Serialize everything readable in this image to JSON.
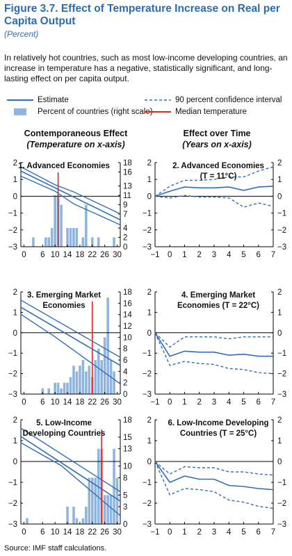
{
  "figure": {
    "title": "Figure 3.7.  Effect of Temperature Increase on Real per Capita Output",
    "subtitle": "(Percent)",
    "description": "In relatively hot countries, such as most low-income developing countries, an increase in temperature has a negative, statistically significant, and long-lasting effect on per capita output.",
    "source": "Source: IMF staff calculations."
  },
  "legend": {
    "estimate": "Estimate",
    "ci": "90 percent confidence interval",
    "bars": "Percent of countries (right scale)",
    "median": "Median temperature"
  },
  "columns": {
    "left_title": "Contemporaneous Effect",
    "left_sub": "(Temperature on x-axis)",
    "right_title": "Effect over Time",
    "right_sub": "(Years on x-axis)"
  },
  "colors": {
    "blue": "#2f6db5",
    "bar": "#8fb4de",
    "median": "#d62728"
  },
  "chart_data": [
    {
      "type": "bar+line",
      "title": "1. Advanced Economies",
      "x_ticks": [
        0,
        6,
        10,
        14,
        18,
        22,
        26,
        30
      ],
      "xlim": [
        -1,
        31
      ],
      "ylim": [
        -3,
        2
      ],
      "y_ticks": [
        -3,
        -2,
        -1,
        0,
        1,
        2
      ],
      "y2lim": [
        0,
        18
      ],
      "y2_ticks": [
        0,
        2,
        4,
        7,
        9,
        11,
        13,
        16,
        18
      ],
      "bars": [
        [
          3,
          2
        ],
        [
          7,
          2
        ],
        [
          8,
          2
        ],
        [
          9,
          4
        ],
        [
          10,
          11
        ],
        [
          11,
          11
        ],
        [
          12,
          9
        ],
        [
          14,
          4
        ],
        [
          15,
          4
        ],
        [
          16,
          4
        ],
        [
          17,
          4
        ],
        [
          19,
          2
        ],
        [
          20,
          9
        ],
        [
          22,
          2
        ],
        [
          24,
          2
        ],
        [
          29,
          2
        ]
      ],
      "estimate": [
        [
          -1,
          1.5
        ],
        [
          31,
          -1.4
        ]
      ],
      "ci_upper": [
        [
          -1,
          1.75
        ],
        [
          10,
          0.68
        ],
        [
          16,
          0.26
        ],
        [
          31,
          -1.05
        ]
      ],
      "ci_lower": [
        [
          -1,
          1.2
        ],
        [
          10,
          0.3
        ],
        [
          16,
          -0.45
        ],
        [
          31,
          -1.7
        ]
      ],
      "median": 11
    },
    {
      "type": "line",
      "title": "2. Advanced Economies",
      "title2": "(T = 11°C)",
      "x_ticks": [
        -1,
        0,
        1,
        2,
        3,
        4,
        5,
        6,
        7
      ],
      "xlim": [
        -1,
        7
      ],
      "ylim": [
        -3,
        2
      ],
      "y_ticks": [
        -3,
        -2,
        -1,
        0,
        1,
        2
      ],
      "estimate": [
        [
          -1,
          0
        ],
        [
          0,
          0.3
        ],
        [
          1,
          0.55
        ],
        [
          2,
          0.5
        ],
        [
          3,
          0.5
        ],
        [
          4,
          0.55
        ],
        [
          5,
          0.35
        ],
        [
          6,
          0.55
        ],
        [
          7,
          0.6
        ]
      ],
      "ci_upper": [
        [
          -1,
          0
        ],
        [
          0,
          0.6
        ],
        [
          1,
          0.95
        ],
        [
          2,
          0.95
        ],
        [
          3,
          1.0
        ],
        [
          4,
          1.15
        ],
        [
          5,
          1.15
        ],
        [
          6,
          1.5
        ],
        [
          7,
          1.75
        ]
      ],
      "ci_lower": [
        [
          -1,
          0
        ],
        [
          0,
          -0.1
        ],
        [
          1,
          0.05
        ],
        [
          2,
          -0.05
        ],
        [
          3,
          -0.05
        ],
        [
          4,
          -0.1
        ],
        [
          5,
          -0.65
        ],
        [
          6,
          -0.4
        ],
        [
          7,
          -0.6
        ]
      ]
    },
    {
      "type": "bar+line",
      "title": "3. Emerging Market",
      "title2": "Economies",
      "x_ticks": [
        0,
        6,
        10,
        14,
        18,
        22,
        26,
        30
      ],
      "xlim": [
        -1,
        31
      ],
      "ylim": [
        -3,
        2
      ],
      "y_ticks": [
        -3,
        -2,
        -1,
        0,
        1,
        2
      ],
      "y2lim": [
        0,
        18
      ],
      "y2_ticks": [
        0,
        2,
        4,
        6,
        8,
        10,
        12,
        14,
        16,
        18
      ],
      "bars": [
        [
          6,
          1
        ],
        [
          8,
          1
        ],
        [
          10,
          2
        ],
        [
          11,
          2
        ],
        [
          12,
          1
        ],
        [
          13,
          2
        ],
        [
          14,
          2
        ],
        [
          15,
          3
        ],
        [
          16,
          5
        ],
        [
          17,
          4
        ],
        [
          18,
          5
        ],
        [
          19,
          6
        ],
        [
          20,
          4
        ],
        [
          21,
          5
        ],
        [
          22,
          3
        ],
        [
          23,
          6
        ],
        [
          24,
          8
        ],
        [
          25,
          6
        ],
        [
          26,
          10
        ],
        [
          27,
          17
        ],
        [
          28,
          6
        ],
        [
          29,
          4
        ]
      ],
      "estimate": [
        [
          -1,
          1.25
        ],
        [
          31,
          -1.6
        ]
      ],
      "ci_upper": [
        [
          -1,
          1.6
        ],
        [
          31,
          -1.2
        ]
      ],
      "ci_lower": [
        [
          -1,
          0.9
        ],
        [
          10,
          -0.2
        ],
        [
          31,
          -2.5
        ]
      ],
      "median": 22
    },
    {
      "type": "line",
      "title": "4. Emerging Market",
      "title2": "Economies (T = 22°C)",
      "x_ticks": [
        -1,
        0,
        1,
        2,
        3,
        4,
        5,
        6,
        7
      ],
      "xlim": [
        -1,
        7
      ],
      "ylim": [
        -3,
        2
      ],
      "y_ticks": [
        -3,
        -2,
        -1,
        0,
        1,
        2
      ],
      "estimate": [
        [
          -1,
          0
        ],
        [
          0,
          -1.15
        ],
        [
          1,
          -0.9
        ],
        [
          2,
          -0.95
        ],
        [
          3,
          -0.95
        ],
        [
          4,
          -1.1
        ],
        [
          5,
          -1.05
        ],
        [
          6,
          -1.15
        ],
        [
          7,
          -1.15
        ]
      ],
      "ci_upper": [
        [
          -1,
          0
        ],
        [
          0,
          -0.7
        ],
        [
          1,
          -0.2
        ],
        [
          2,
          -0.2
        ],
        [
          3,
          -0.2
        ],
        [
          4,
          -0.3
        ],
        [
          5,
          -0.2
        ],
        [
          6,
          -0.2
        ],
        [
          7,
          -0.2
        ]
      ],
      "ci_lower": [
        [
          -1,
          0
        ],
        [
          0,
          -1.6
        ],
        [
          1,
          -1.4
        ],
        [
          2,
          -1.5
        ],
        [
          3,
          -1.55
        ],
        [
          4,
          -1.75
        ],
        [
          5,
          -1.8
        ],
        [
          6,
          -1.95
        ],
        [
          7,
          -2.0
        ]
      ]
    },
    {
      "type": "bar+line",
      "title": "5. Low-Income",
      "title2": "Developing Countries",
      "x_ticks": [
        0,
        6,
        10,
        14,
        18,
        22,
        26,
        30
      ],
      "xlim": [
        -1,
        31
      ],
      "ylim": [
        -3,
        2
      ],
      "y_ticks": [
        -3,
        -2,
        -1,
        0,
        1,
        2
      ],
      "y2lim": [
        0,
        18
      ],
      "y2_ticks": [
        0,
        3,
        5,
        8,
        10,
        13,
        15,
        18
      ],
      "bars": [
        [
          1,
          1
        ],
        [
          14,
          3
        ],
        [
          16,
          3
        ],
        [
          17,
          1
        ],
        [
          19,
          1
        ],
        [
          20,
          3
        ],
        [
          21,
          8
        ],
        [
          22,
          8
        ],
        [
          23,
          8
        ],
        [
          24,
          13
        ],
        [
          25,
          13
        ],
        [
          26,
          5
        ],
        [
          27,
          5
        ],
        [
          28,
          5
        ],
        [
          29,
          13
        ],
        [
          30,
          8
        ]
      ],
      "estimate": [
        [
          -1,
          1.2
        ],
        [
          31,
          -1.9
        ]
      ],
      "ci_upper": [
        [
          -1,
          1.6
        ],
        [
          31,
          -1.45
        ]
      ],
      "ci_lower": [
        [
          -1,
          0.9
        ],
        [
          12,
          -0.2
        ],
        [
          31,
          -2.6
        ]
      ],
      "median": 25
    },
    {
      "type": "line",
      "title": "6. Low-Income Developing",
      "title2": "Countries (T = 25°C)",
      "x_ticks": [
        -1,
        0,
        1,
        2,
        3,
        4,
        5,
        6,
        7
      ],
      "xlim": [
        -1,
        7
      ],
      "ylim": [
        -3,
        2
      ],
      "y_ticks": [
        -3,
        -2,
        -1,
        0,
        1,
        2
      ],
      "estimate": [
        [
          -1,
          0
        ],
        [
          0,
          -1.0
        ],
        [
          1,
          -0.7
        ],
        [
          2,
          -0.85
        ],
        [
          3,
          -0.85
        ],
        [
          4,
          -1.15
        ],
        [
          5,
          -1.2
        ],
        [
          6,
          -1.3
        ],
        [
          7,
          -1.35
        ]
      ],
      "ci_upper": [
        [
          -1,
          0
        ],
        [
          0,
          -0.6
        ],
        [
          1,
          -0.25
        ],
        [
          2,
          -0.3
        ],
        [
          3,
          -0.3
        ],
        [
          4,
          -0.5
        ],
        [
          5,
          -0.5
        ],
        [
          6,
          -0.6
        ],
        [
          7,
          -0.65
        ]
      ],
      "ci_lower": [
        [
          -1,
          0
        ],
        [
          0,
          -1.6
        ],
        [
          1,
          -1.3
        ],
        [
          2,
          -1.35
        ],
        [
          3,
          -1.45
        ],
        [
          4,
          -1.85
        ],
        [
          5,
          -1.95
        ],
        [
          6,
          -2.15
        ],
        [
          7,
          -2.25
        ]
      ]
    }
  ]
}
